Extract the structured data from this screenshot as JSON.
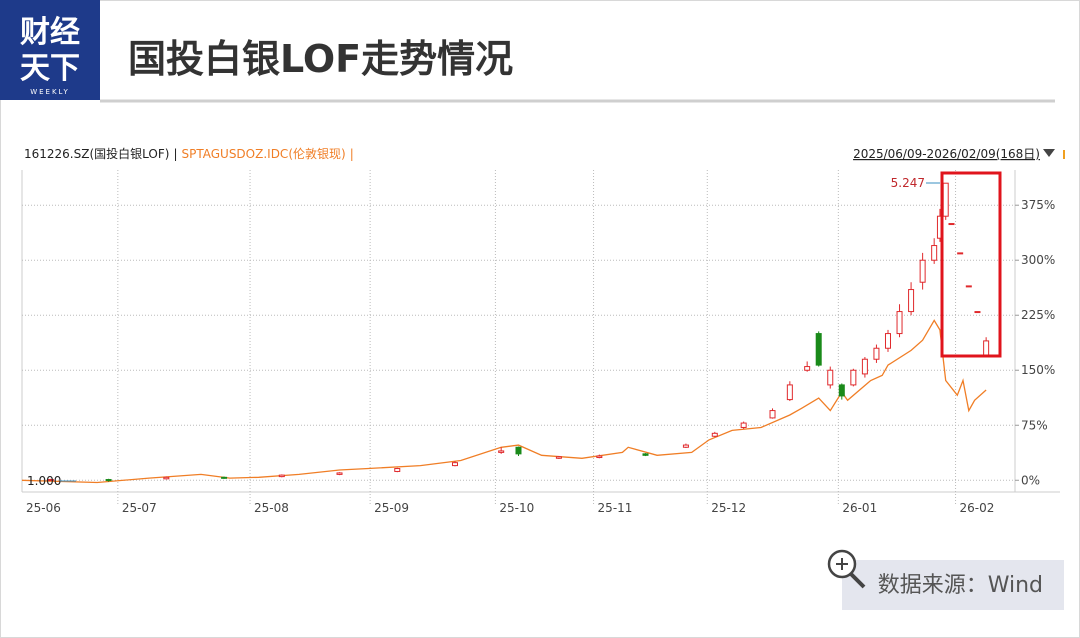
{
  "header": {
    "logo_lines": [
      "财经",
      "天下"
    ],
    "logo_sub": "WEEKLY",
    "title": "国投白银LOF走势情况"
  },
  "chart_data": {
    "type": "candlestick",
    "date_range": "2025/06/09-2026/02/09(168日)",
    "separator": "|",
    "annotations": [
      "5.247",
      "1.000"
    ],
    "up_color": "#e0292c",
    "down_color": "#1a8a1a",
    "grid": true,
    "xlim": [
      0,
      172
    ],
    "xticks": [
      {
        "value": 0,
        "label": "25-06"
      },
      {
        "value": 16.6,
        "label": "25-07"
      },
      {
        "value": 39.5,
        "label": "25-08"
      },
      {
        "value": 60.3,
        "label": "25-09"
      },
      {
        "value": 82,
        "label": "25-10"
      },
      {
        "value": 99,
        "label": "25-11"
      },
      {
        "value": 118.7,
        "label": "25-12"
      },
      {
        "value": 141.4,
        "label": "26-01"
      },
      {
        "value": 161.7,
        "label": "26-02"
      }
    ],
    "ylim": [
      -16,
      423
    ],
    "yticks": [
      {
        "value": 0,
        "label": "0%"
      },
      {
        "value": 75,
        "label": "75%"
      },
      {
        "value": 150,
        "label": "150%"
      },
      {
        "value": 225,
        "label": "225%"
      },
      {
        "value": 300,
        "label": "300%"
      },
      {
        "value": 375,
        "label": "375%"
      }
    ],
    "series": [
      {
        "name": "161226.SZ(国投白银LOF)",
        "color": "#222222",
        "type": "candlestick",
        "x": [
          5,
          15,
          25,
          35,
          45,
          55,
          65,
          75,
          83,
          86,
          93,
          100,
          108,
          115,
          120,
          125,
          130,
          133,
          136,
          138,
          140,
          142,
          144,
          146,
          148,
          150,
          152,
          154,
          156,
          158,
          159,
          160,
          161,
          162.5,
          164,
          165.5,
          167
        ],
        "open": [
          0,
          1,
          2,
          4,
          5,
          8,
          12,
          20,
          38,
          45,
          30,
          31,
          36,
          45,
          60,
          72,
          85,
          110,
          150,
          200,
          130,
          130,
          130,
          145,
          165,
          180,
          200,
          230,
          270,
          300,
          330,
          360,
          350,
          310,
          265,
          230,
          170
        ],
        "close": [
          1,
          0,
          4,
          3,
          7,
          10,
          16,
          24,
          40,
          36,
          32,
          33,
          34,
          48,
          64,
          78,
          95,
          130,
          155,
          157,
          150,
          115,
          150,
          165,
          180,
          200,
          230,
          260,
          300,
          320,
          360,
          405,
          350,
          310,
          265,
          230,
          190
        ],
        "high": [
          2,
          2,
          5,
          5,
          8,
          11,
          17,
          26,
          45,
          46,
          33,
          35,
          37,
          50,
          66,
          80,
          98,
          135,
          162,
          203,
          155,
          132,
          152,
          168,
          185,
          205,
          240,
          270,
          310,
          330,
          370,
          405,
          350,
          310,
          265,
          230,
          195
        ],
        "low": [
          -1,
          -2,
          1,
          2,
          4,
          7,
          11,
          19,
          36,
          33,
          29,
          30,
          33,
          44,
          59,
          70,
          84,
          108,
          148,
          155,
          125,
          110,
          128,
          140,
          160,
          175,
          195,
          225,
          260,
          295,
          325,
          355,
          350,
          310,
          265,
          230,
          168
        ]
      },
      {
        "name": "SPTAGUSDOZ.IDC(伦敦银现)",
        "color": "#f07e26",
        "type": "line",
        "x": [
          0,
          13,
          22,
          31,
          36,
          41,
          48,
          55,
          60,
          69,
          76,
          83,
          86,
          90,
          97,
          104,
          105,
          110,
          116,
          119,
          123,
          128,
          133,
          135,
          138,
          140,
          142,
          143,
          147,
          149,
          150,
          154,
          156,
          158,
          159,
          160,
          162,
          163,
          164,
          165,
          167
        ],
        "values": [
          0,
          -3,
          3,
          8,
          3,
          4,
          8,
          14,
          16,
          20,
          27,
          45,
          48,
          34,
          30,
          38,
          45,
          34,
          38,
          55,
          68,
          72,
          89,
          98,
          112,
          95,
          120,
          109,
          136,
          143,
          157,
          177,
          191,
          218,
          205,
          136,
          116,
          136,
          95,
          109,
          123
        ]
      }
    ]
  },
  "footer": {
    "source": "数据来源：Wind"
  }
}
